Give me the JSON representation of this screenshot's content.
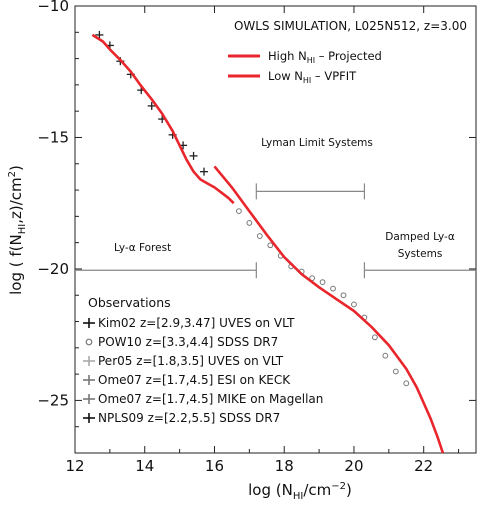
{
  "chart_data": {
    "type": "line",
    "title": "OWLS SIMULATION, L025N512, z=3.00",
    "xlabel": {
      "main": "log (N",
      "sub": "HI",
      "rest": "/cm",
      "sup": "−2",
      "end": ")"
    },
    "ylabel": {
      "main": "log ( f(N",
      "sub": "HI",
      "rest": ",z)/cm",
      "sup": "2",
      "end": ")"
    },
    "xlim": [
      12,
      23.5
    ],
    "ylim": [
      -27,
      -10
    ],
    "xticks": [
      12,
      14,
      16,
      18,
      20,
      22
    ],
    "yticks": [
      -10,
      -15,
      -20,
      -25
    ],
    "xtick_labels": [
      "12",
      "14",
      "16",
      "18",
      "20",
      "22"
    ],
    "ytick_labels": [
      "−10",
      "−15",
      "−20",
      "−25"
    ],
    "grid": false,
    "line_color": "#e8262c",
    "legend": [
      {
        "pre": "High N",
        "sub": "HI",
        "post": " – Projected",
        "color": "#e8262c"
      },
      {
        "pre": "Low N",
        "sub": "HI",
        "post": " – VPFIT",
        "color": "#e8262c"
      }
    ],
    "series": [
      {
        "name": "Low N_HI – VPFIT",
        "color": "#e8262c",
        "x": [
          12.5,
          12.8,
          13.0,
          13.3,
          13.6,
          13.9,
          14.2,
          14.5,
          14.8,
          15.0,
          15.2,
          15.4,
          15.6,
          15.8,
          16.0,
          16.2,
          16.4,
          16.55
        ],
        "y": [
          -11.1,
          -11.35,
          -11.65,
          -12.05,
          -12.5,
          -13.05,
          -13.55,
          -14.1,
          -14.75,
          -15.3,
          -15.85,
          -16.3,
          -16.6,
          -16.75,
          -16.9,
          -17.1,
          -17.3,
          -17.5
        ]
      },
      {
        "name": "High N_HI – Projected",
        "color": "#e8262c",
        "x": [
          16.0,
          16.5,
          17.0,
          17.5,
          18.0,
          18.5,
          19.0,
          19.5,
          20.0,
          20.5,
          21.0,
          21.5,
          21.8,
          22.0,
          22.2,
          22.4,
          22.55
        ],
        "y": [
          -16.1,
          -16.9,
          -17.8,
          -18.7,
          -19.55,
          -20.2,
          -20.7,
          -21.15,
          -21.6,
          -22.2,
          -22.9,
          -23.8,
          -24.5,
          -25.1,
          -25.7,
          -26.4,
          -27.0
        ]
      }
    ],
    "observations": {
      "pow10": {
        "x": [
          16.7,
          17.0,
          17.3,
          17.6,
          17.9,
          18.2,
          18.5,
          18.8,
          19.1,
          19.4,
          19.7,
          20.0,
          20.3,
          20.6,
          20.9,
          21.2,
          21.5
        ],
        "y": [
          -17.8,
          -18.25,
          -18.75,
          -19.1,
          -19.5,
          -19.9,
          -20.1,
          -20.35,
          -20.5,
          -20.75,
          -21.0,
          -21.35,
          -21.85,
          -22.6,
          -23.3,
          -23.9,
          -24.35
        ]
      },
      "kim02": {
        "x": [
          12.7,
          13.0,
          13.3,
          13.6,
          13.9,
          14.2,
          14.5,
          14.8,
          15.1,
          15.4,
          15.7
        ],
        "y": [
          -11.1,
          -11.5,
          -12.1,
          -12.6,
          -13.2,
          -13.8,
          -14.3,
          -14.9,
          -15.3,
          -15.7,
          -16.3
        ]
      }
    },
    "annotations": {
      "lls": "Lyman Limit Systems",
      "forest": "Ly-α Forest",
      "dla1": "Damped Ly-α",
      "dla2": "Systems"
    },
    "observations_title": "Observations",
    "observations_legend": [
      {
        "name": "Kim02",
        "range": "z=[2.9,3.47]",
        "inst": "UVES on VLT",
        "marker": "cross-dark"
      },
      {
        "name": "POW10",
        "range": "z=[3.3,4.4]",
        "inst": "SDSS DR7",
        "marker": "circle"
      },
      {
        "name": "Per05",
        "range": "z=[1.8,3.5]",
        "inst": "UVES on VLT",
        "marker": "cross-light"
      },
      {
        "name": "Ome07",
        "range": "z=[1.7,4.5]",
        "inst": "ESI on KECK",
        "marker": "cross-mid"
      },
      {
        "name": "Ome07",
        "range": "z=[1.7,4.5]",
        "inst": "MIKE on Magellan",
        "marker": "cross-mid"
      },
      {
        "name": "NPLS09",
        "range": "z=[2.2,5.5]",
        "inst": "SDSS DR7",
        "marker": "cross-dark"
      }
    ]
  }
}
